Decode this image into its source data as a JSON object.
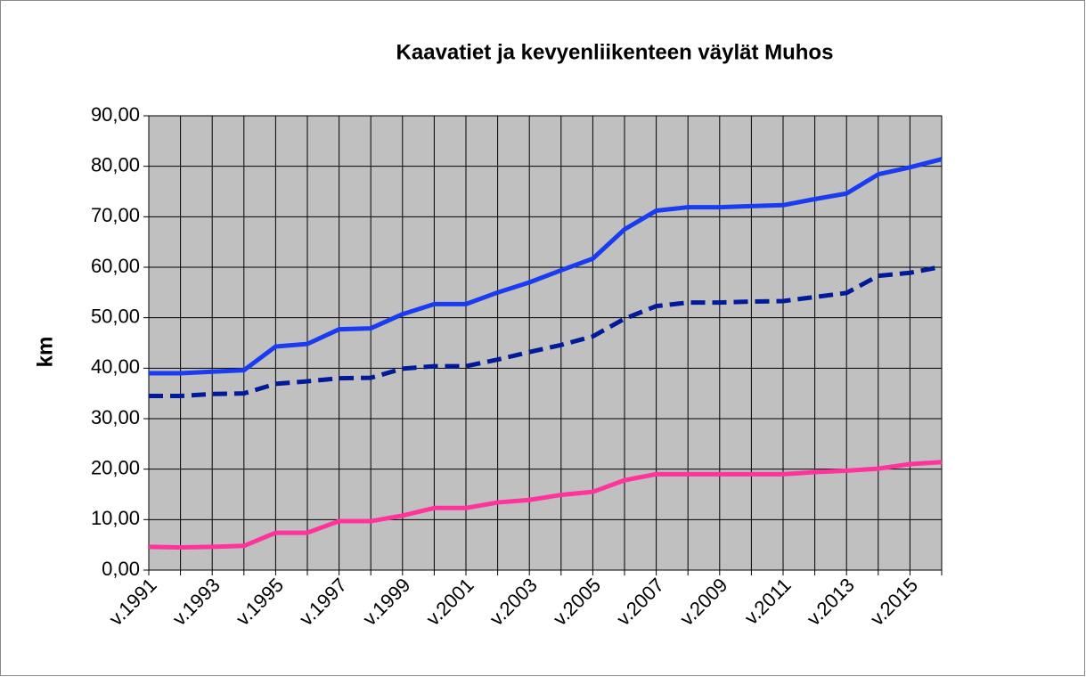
{
  "chart_data": {
    "type": "line",
    "title": "Kaavatiet ja kevyenliikenteen väylät Muhos",
    "ylabel": "km",
    "categories": [
      "v.1991",
      null,
      "v.1993",
      null,
      "v.1995",
      null,
      "v.1997",
      null,
      "v.1999",
      null,
      "v.2001",
      null,
      "v.2003",
      null,
      "v.2005",
      null,
      "v.2007",
      null,
      "v.2009",
      null,
      "v.2011",
      null,
      "v.2013",
      null,
      "v.2015",
      null
    ],
    "series": [
      {
        "color": "#1a3cf0",
        "line_style": "solid",
        "values": [
          39,
          39,
          39.3,
          39.6,
          44.3,
          44.8,
          47.7,
          47.9,
          50.7,
          52.7,
          52.7,
          55.0,
          57.0,
          59.4,
          61.7,
          67.5,
          71.2,
          71.9,
          71.9,
          72.1,
          72.3,
          73.5,
          74.6,
          78.4,
          79.8,
          81.4
        ]
      },
      {
        "color": "#001a99",
        "line_style": "dashed",
        "values": [
          34.5,
          34.5,
          34.9,
          35.0,
          36.9,
          37.4,
          38.0,
          38.1,
          39.9,
          40.4,
          40.4,
          41.7,
          43.2,
          44.6,
          46.3,
          49.8,
          52.3,
          53.0,
          53.0,
          53.2,
          53.3,
          54.1,
          54.9,
          58.3,
          58.9,
          60.1
        ]
      },
      {
        "color": "#ff3399",
        "line_style": "solid",
        "values": [
          4.6,
          4.5,
          4.6,
          4.8,
          7.4,
          7.4,
          9.7,
          9.7,
          10.8,
          12.3,
          12.3,
          13.4,
          13.9,
          14.9,
          15.5,
          17.8,
          19.0,
          19.0,
          19.0,
          19.0,
          19.0,
          19.4,
          19.7,
          20.1,
          21.0,
          21.4
        ]
      }
    ],
    "ylim": [
      0,
      90
    ],
    "yticks": [
      {
        "value": 0,
        "label": "0,00"
      },
      {
        "value": 10,
        "label": "10,00"
      },
      {
        "value": 20,
        "label": "20,00"
      },
      {
        "value": 30,
        "label": "30,00"
      },
      {
        "value": 40,
        "label": "40,00"
      },
      {
        "value": 50,
        "label": "50,00"
      },
      {
        "value": 60,
        "label": "60,00"
      },
      {
        "value": 70,
        "label": "70,00"
      },
      {
        "value": 80,
        "label": "80,00"
      },
      {
        "value": 90,
        "label": "90,00"
      }
    ],
    "grid": true,
    "plot_background": "#c0c0c0"
  }
}
